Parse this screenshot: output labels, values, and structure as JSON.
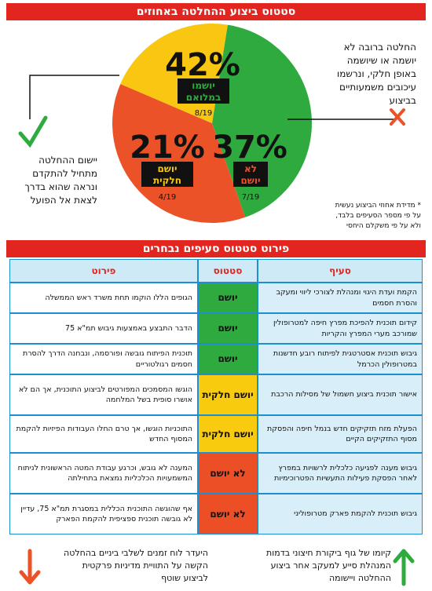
{
  "header_top": "סטטוס ביצוע ההחלטה באחוזים",
  "header_table": "פירוט סטטוס סעיפים נבחרים",
  "chart_data": {
    "type": "pie",
    "title": "סטטוס ביצוע ההחלטה באחוזים",
    "slices": [
      {
        "label": "יושמו במלואם",
        "percent": 42,
        "value": 8,
        "fraction": "8/19",
        "color": "#2eaa3f"
      },
      {
        "label": "לא יושם",
        "percent": 37,
        "value": 7,
        "fraction": "7/19",
        "color": "#ec5228"
      },
      {
        "label": "יושם חלקית",
        "percent": 21,
        "value": 4,
        "fraction": "4/19",
        "color": "#f9c711"
      }
    ]
  },
  "pie_labels": {
    "green_pct": "42%",
    "green_l1": "יושמו",
    "green_l2": "במלואם",
    "green_frac": "8/19",
    "red_pct": "37%",
    "red_l1": "לא",
    "red_l2": "יושם",
    "red_frac": "7/19",
    "yellow_pct": "21%",
    "yellow_l1": "יושם",
    "yellow_l2": "חלקית",
    "yellow_frac": "4/19"
  },
  "notes": {
    "right_l1": "החלטה ברובה לא",
    "right_l2": "יושמה או שיושמה",
    "right_l3": "באופן חלקי, ונרשמו",
    "right_l4": "עיכובים משמעותיים",
    "right_l5": "בביצוע",
    "left_l1": "יישום ההחלטה",
    "left_l2": "מתחיל להתקדם",
    "left_l3": "ונראה שהוא בדרך",
    "left_l4": "לצאת אל הפועל",
    "foot_l1": "* מדידת אחוזי הביצוע נעשית",
    "foot_l2": "על פי מספר הסעיפים בלבד,",
    "foot_l3": "ולא על פי משקלם היחסי"
  },
  "table": {
    "headers": {
      "clause": "סעיף",
      "status": "סטטוס",
      "detail": "פירוט"
    },
    "rows": [
      {
        "clause": "הקמת ועדת היגוי ומנהלת לצורכי ליווי ומעקב והסרת חסמים",
        "status": "יושם",
        "status_color": "green",
        "detail": "הגופים הללו הוקמו תחת משרד ראש הממשלה"
      },
      {
        "clause": "קידום תוכנית להפיכת מפרץ חיפה למטרופולין שמורכב מערי המפרץ והקריות",
        "status": "יושם",
        "status_color": "green",
        "detail": "הדבר התבצע באמצעות גיבוש תמ\"א 75"
      },
      {
        "clause": "גיבוש תוכנית אסטרטגית לפיתוח רובע חדשנות במטרופולין הכרמל",
        "status": "יושם",
        "status_color": "green",
        "detail": "תוכנית הפיתוח גובשה ופורסמה, ונבחנה הדרך להסרת חסמים רגולטוריים"
      },
      {
        "clause": "אישור תוכנית ביצוע חשמול של מסילות הרכבת",
        "status": "יושם חלקית",
        "status_color": "yellow",
        "detail": "הוגשו המסמכים המפורטים לביצוע התוכנית, אך הם לא אושרו סופית בשל המלחמה"
      },
      {
        "clause": "הפעלת מזח תזקיקים חדש בנמל חיפה והפסקת מסוף התזקיקים הקיים",
        "status": "יושם חלקית",
        "status_color": "yellow",
        "detail": "התוכניות הוגשו, אך טרם החלו העבודות הפיזיות להקמת המסוף החדש"
      },
      {
        "clause": "גיבוש מענה לפגיעה כלכלית לרשויות במפרץ לאחר הפסקת פעילות התעשיות הפטרוכימיות",
        "status": "לא יושם",
        "status_color": "red",
        "detail": "המענה לא גובש, וכרגע עבודת המטה הראשונית לניתוח המשמעויות הכלכליות נמצאת בתחילתה"
      },
      {
        "clause": "גיבוש תוכנית להקמת פארק מטרופוליני",
        "status": "לא יושם",
        "status_color": "red",
        "detail": "אף שהוגשה התוכנית הכללית במסגרת תמ\"א 75, עדיין לא גובשה תוכנית ספציפית להקמת הפארק"
      }
    ]
  },
  "bottom": {
    "right_l1": "קיומו של גוף ביקורת חיצוני בדמות",
    "right_l2": "המנהלת סייע למעקב אחר ביצוע",
    "right_l3": "ההחלטה ויישומה",
    "left_l1": "היעדר לוח זמנים לשלבי ביניים בהחלטה",
    "left_l2": "הקשה על התוויית מדיניות פרקטית",
    "left_l3": "לביצוע שוטף"
  }
}
